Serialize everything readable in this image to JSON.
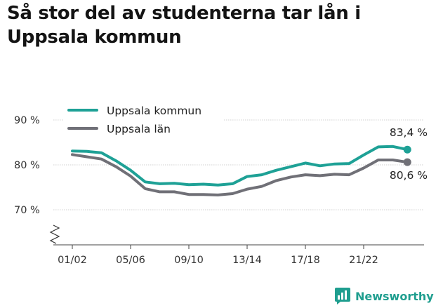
{
  "title": "Så stor del av studenterna tar lån i Uppsala kommun",
  "brand": {
    "name": "Newsworthy",
    "color": "#1f9e8f"
  },
  "chart_data": {
    "type": "line",
    "x": [
      "01/02",
      "02/03",
      "03/04",
      "04/05",
      "05/06",
      "06/07",
      "07/08",
      "08/09",
      "09/10",
      "10/11",
      "11/12",
      "12/13",
      "13/14",
      "14/15",
      "15/16",
      "16/17",
      "17/18",
      "18/19",
      "19/20",
      "20/21",
      "21/22",
      "22/23",
      "23/24",
      "24/25"
    ],
    "x_tick_labels": [
      "01/02",
      "05/06",
      "09/10",
      "13/14",
      "17/18",
      "21/22"
    ],
    "y_tick_labels": [
      "90 %",
      "80 %",
      "70 %"
    ],
    "ylim": [
      62.5,
      92
    ],
    "y_break": true,
    "grid": true,
    "legend": "top-left",
    "series": [
      {
        "name": "Uppsala kommun",
        "color": "#1ea196",
        "values": [
          83.1,
          83.0,
          82.7,
          80.9,
          78.8,
          76.2,
          75.8,
          75.9,
          75.6,
          75.7,
          75.5,
          75.8,
          77.4,
          77.8,
          78.8,
          79.6,
          80.4,
          79.8,
          80.2,
          80.3,
          82.2,
          84.0,
          84.1,
          83.4
        ],
        "end_label": "83,4 %"
      },
      {
        "name": "Uppsala län",
        "color": "#707077",
        "values": [
          82.3,
          81.8,
          81.3,
          79.6,
          77.5,
          74.7,
          74.0,
          74.0,
          73.4,
          73.4,
          73.3,
          73.6,
          74.6,
          75.2,
          76.5,
          77.3,
          77.8,
          77.6,
          77.9,
          77.8,
          79.3,
          81.1,
          81.1,
          80.6
        ],
        "end_label": "80,6 %"
      }
    ]
  }
}
